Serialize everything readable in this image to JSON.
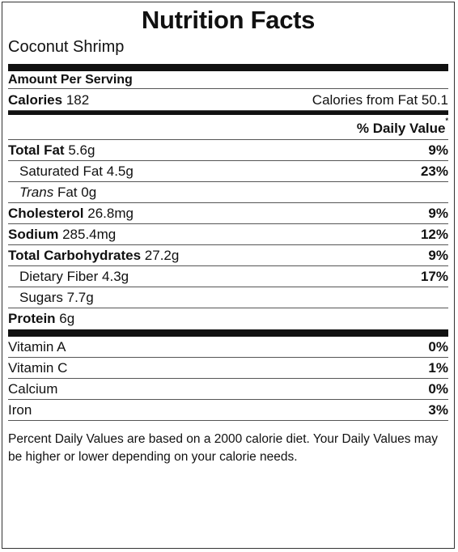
{
  "title": "Nutrition Facts",
  "product": "Coconut Shrimp",
  "amount_per_serving": "Amount Per Serving",
  "calories": {
    "label": "Calories",
    "value": "182",
    "from_fat_label": "Calories from Fat",
    "from_fat_value": "50.1"
  },
  "daily_value_header": "% Daily Value",
  "daily_value_marker": "*",
  "nutrients": {
    "total_fat": {
      "label": "Total Fat",
      "amount": "5.6g",
      "dv": "9%"
    },
    "saturated_fat": {
      "label": "Saturated Fat",
      "amount": "4.5g",
      "dv": "23%"
    },
    "trans_fat": {
      "label_italic": "Trans",
      "label": "Fat",
      "amount": "0g"
    },
    "cholesterol": {
      "label": "Cholesterol",
      "amount": "26.8mg",
      "dv": "9%"
    },
    "sodium": {
      "label": "Sodium",
      "amount": "285.4mg",
      "dv": "12%"
    },
    "total_carbs": {
      "label": "Total Carbohydrates",
      "amount": "27.2g",
      "dv": "9%"
    },
    "dietary_fiber": {
      "label": "Dietary Fiber",
      "amount": "4.3g",
      "dv": "17%"
    },
    "sugars": {
      "label": "Sugars",
      "amount": "7.7g"
    },
    "protein": {
      "label": "Protein",
      "amount": "6g"
    }
  },
  "vitamins": [
    {
      "label": "Vitamin A",
      "dv": "0%"
    },
    {
      "label": "Vitamin C",
      "dv": "1%"
    },
    {
      "label": "Calcium",
      "dv": "0%"
    },
    {
      "label": "Iron",
      "dv": "3%"
    }
  ],
  "footnote": "Percent Daily Values are based on a 2000 calorie diet. Your Daily Values may be higher or lower depending on your calorie needs."
}
